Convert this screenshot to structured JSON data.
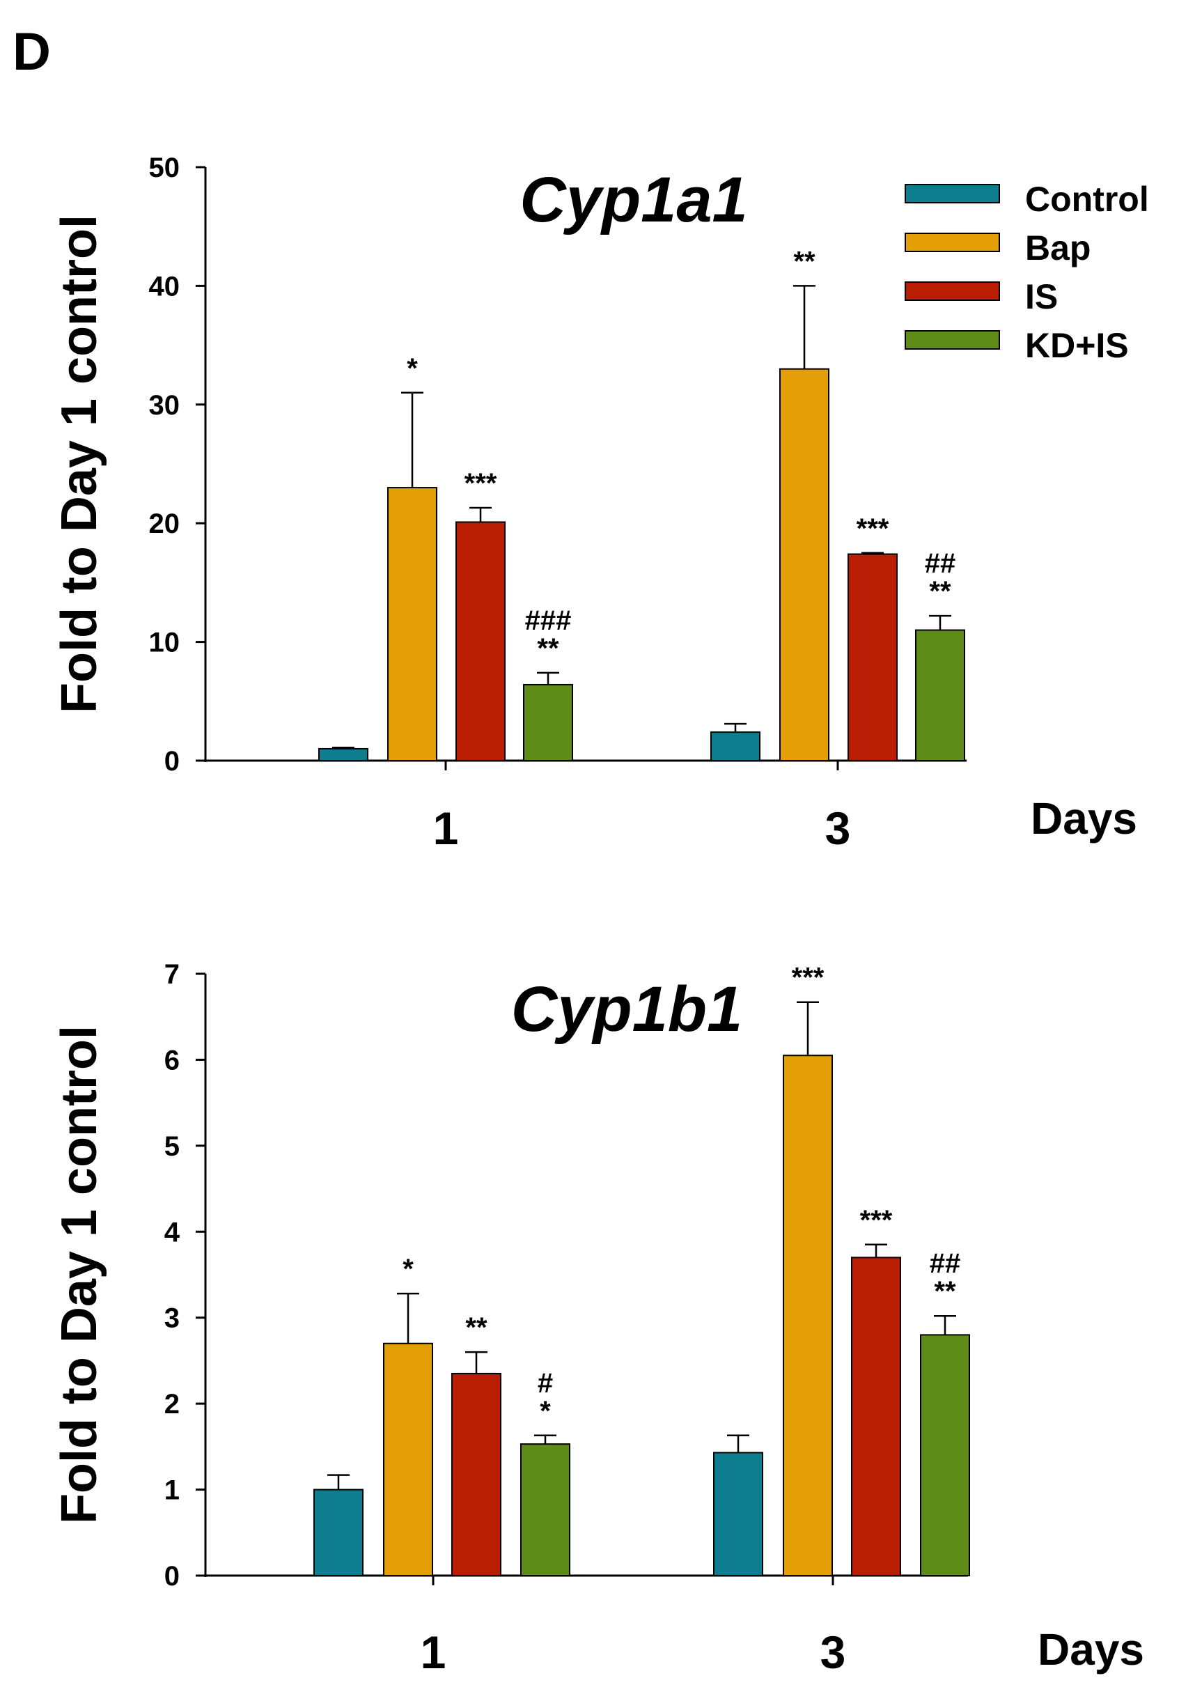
{
  "panel_label": "D",
  "chart_data": [
    {
      "type": "bar",
      "title": "Cyp1a1",
      "ylabel": "Fold to Day 1 control",
      "xlabel": "Days",
      "categories": [
        "1",
        "3"
      ],
      "ylim": [
        0,
        50
      ],
      "yticks": [
        0,
        10,
        20,
        30,
        40,
        50
      ],
      "series": [
        {
          "name": "Control",
          "color": "#0E7E8E",
          "values": [
            1.0,
            2.4
          ],
          "errors": [
            0.1,
            0.7
          ],
          "annotations": [
            [],
            []
          ]
        },
        {
          "name": "Bap",
          "color": "#E39F05",
          "values": [
            23.0,
            33.0
          ],
          "errors": [
            8.0,
            7.0
          ],
          "annotations": [
            [
              "*"
            ],
            [
              "**"
            ]
          ]
        },
        {
          "name": "IS",
          "color": "#B91D04",
          "values": [
            20.1,
            17.4
          ],
          "errors": [
            1.2,
            0.1
          ],
          "annotations": [
            [
              "***"
            ],
            [
              "***"
            ]
          ]
        },
        {
          "name": "KD+IS",
          "color": "#5F8B19",
          "values": [
            6.4,
            11.0
          ],
          "errors": [
            1.0,
            1.2
          ],
          "annotations": [
            [
              "###",
              "**"
            ],
            [
              "##",
              "**"
            ]
          ]
        }
      ],
      "legend": {
        "position": "top-right",
        "entries": [
          "Control",
          "Bap",
          "IS",
          "KD+IS"
        ]
      }
    },
    {
      "type": "bar",
      "title": "Cyp1b1",
      "ylabel": "Fold to Day 1 control",
      "xlabel": "Days",
      "categories": [
        "1",
        "3"
      ],
      "ylim": [
        0,
        7
      ],
      "yticks": [
        0,
        1,
        2,
        3,
        4,
        5,
        6,
        7
      ],
      "series": [
        {
          "name": "Control",
          "color": "#0E7E8E",
          "values": [
            1.0,
            1.43
          ],
          "errors": [
            0.17,
            0.2
          ],
          "annotations": [
            [],
            []
          ]
        },
        {
          "name": "Bap",
          "color": "#E39F05",
          "values": [
            2.7,
            6.05
          ],
          "errors": [
            0.58,
            0.62
          ],
          "annotations": [
            [
              "*"
            ],
            [
              "***"
            ]
          ]
        },
        {
          "name": "IS",
          "color": "#B91D04",
          "values": [
            2.35,
            3.7
          ],
          "errors": [
            0.25,
            0.15
          ],
          "annotations": [
            [
              "**"
            ],
            [
              "***"
            ]
          ]
        },
        {
          "name": "KD+IS",
          "color": "#5F8B19",
          "values": [
            1.53,
            2.8
          ],
          "errors": [
            0.1,
            0.22
          ],
          "annotations": [
            [
              "#",
              "*"
            ],
            [
              "##",
              "**"
            ]
          ]
        }
      ]
    }
  ]
}
